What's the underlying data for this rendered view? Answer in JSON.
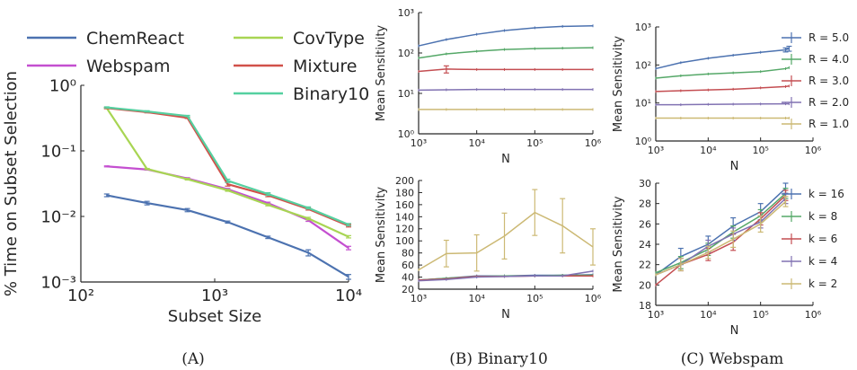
{
  "panel_titles": [
    "(A)",
    "(B) Binary10",
    "(C) Webspam"
  ],
  "chart_data": [
    {
      "id": "A",
      "type": "line",
      "title": "",
      "xlabel": "Subset Size",
      "ylabel": "% Time on Subset Selection",
      "xscale": "log",
      "yscale": "log",
      "xlim": [
        100,
        10000
      ],
      "ylim": [
        0.001,
        1
      ],
      "xticks": [
        100,
        1000,
        10000
      ],
      "xtick_labels": [
        "10²",
        "10³",
        "10⁴"
      ],
      "yticks": [
        0.001,
        0.01,
        0.1,
        1
      ],
      "ytick_labels": [
        "10⁻³",
        "10⁻²",
        "10⁻¹",
        "10⁰"
      ],
      "grid": false,
      "legend": "top, two columns",
      "x": [
        156,
        312,
        625,
        1250,
        2500,
        5000,
        10000
      ],
      "series": [
        {
          "name": "ChemReact",
          "color": "#4c72b0",
          "values": [
            0.021,
            0.016,
            0.0125,
            0.0082,
            0.0048,
            0.0028,
            0.0012
          ],
          "err": [
            0.001,
            0.001,
            0.0007,
            0.0003,
            0.0002,
            0.0003,
            0.0001
          ]
        },
        {
          "name": "Webspam",
          "color": "#c44fd0",
          "values": [
            0.058,
            0.052,
            0.038,
            0.026,
            0.016,
            0.0088,
            0.0033
          ],
          "err": [
            0.001,
            0.001,
            0.001,
            0.0008,
            0.0005,
            0.0004,
            0.0002
          ]
        },
        {
          "name": "CovType",
          "color": "#a8d553",
          "values": [
            0.45,
            0.053,
            0.037,
            0.025,
            0.015,
            0.0093,
            0.0049
          ],
          "err": [
            0.01,
            0.001,
            0.001,
            0.0008,
            0.0005,
            0.0004,
            0.0002
          ]
        },
        {
          "name": "Mixture",
          "color": "#d1514a",
          "values": [
            0.45,
            0.39,
            0.32,
            0.031,
            0.021,
            0.013,
            0.0072
          ],
          "err": [
            0.01,
            0.01,
            0.008,
            0.002,
            0.001,
            0.0005,
            0.0003
          ]
        },
        {
          "name": "Binary10",
          "color": "#55d0a0",
          "values": [
            0.46,
            0.4,
            0.34,
            0.035,
            0.022,
            0.0135,
            0.0075
          ],
          "err": [
            0.01,
            0.01,
            0.008,
            0.002,
            0.001,
            0.0005,
            0.0003
          ]
        }
      ]
    },
    {
      "id": "B-top",
      "type": "line",
      "xlabel": "N",
      "ylabel": "Mean Sensitivity",
      "xscale": "log",
      "yscale": "log",
      "xlim": [
        1000,
        1000000
      ],
      "ylim": [
        1,
        1000
      ],
      "xticks": [
        1000,
        10000,
        100000,
        1000000
      ],
      "xtick_labels": [
        "10³",
        "10⁴",
        "10⁵",
        "10⁶"
      ],
      "yticks": [
        1,
        10,
        100,
        1000
      ],
      "ytick_labels": [
        "10⁰",
        "10¹",
        "10²",
        "10³"
      ],
      "x": [
        1000,
        3000,
        10000,
        30000,
        100000,
        300000,
        1000000
      ],
      "series": [
        {
          "color": "#4c72b0",
          "values": [
            150,
            215,
            290,
            360,
            420,
            455,
            470
          ],
          "err": [
            0,
            0,
            0,
            0,
            0,
            0,
            0
          ]
        },
        {
          "color": "#55a868",
          "values": [
            75,
            95,
            110,
            122,
            128,
            132,
            135
          ],
          "err": [
            0,
            0,
            0,
            0,
            0,
            0,
            0
          ]
        },
        {
          "color": "#c44e52",
          "values": [
            35,
            40,
            39,
            39,
            39,
            39,
            39
          ],
          "err": [
            0,
            8,
            0,
            0,
            0,
            0,
            0
          ]
        },
        {
          "color": "#8172b2",
          "values": [
            12,
            12.3,
            12.5,
            12.5,
            12.5,
            12.5,
            12.5
          ],
          "err": [
            0,
            0,
            0,
            0,
            0,
            0,
            0
          ]
        },
        {
          "color": "#ccb974",
          "values": [
            4,
            4,
            4,
            4,
            4,
            4,
            4
          ],
          "err": [
            0,
            0,
            0,
            0,
            0,
            0,
            0
          ]
        }
      ]
    },
    {
      "id": "B-bottom",
      "type": "line",
      "xlabel": "N",
      "ylabel": "Mean Sensitivity",
      "xscale": "log",
      "yscale": "linear",
      "xlim": [
        1000,
        1000000
      ],
      "ylim": [
        20,
        200
      ],
      "xticks": [
        1000,
        10000,
        100000,
        1000000
      ],
      "xtick_labels": [
        "10³",
        "10⁴",
        "10⁵",
        "10⁶"
      ],
      "yticks": [
        20,
        40,
        60,
        80,
        100,
        120,
        140,
        160,
        180,
        200
      ],
      "x": [
        1000,
        3000,
        10000,
        30000,
        100000,
        300000,
        1000000
      ],
      "series": [
        {
          "color": "#ccb974",
          "values": [
            52,
            79,
            80,
            108,
            147,
            125,
            90
          ],
          "err": [
            0,
            22,
            30,
            38,
            38,
            45,
            30
          ]
        },
        {
          "color": "#4c72b0",
          "values": [
            35,
            38,
            42,
            42,
            43,
            43,
            44
          ],
          "err": [
            0,
            0,
            0,
            0,
            0,
            0,
            0
          ]
        },
        {
          "color": "#55a868",
          "values": [
            35,
            38,
            41,
            42,
            42,
            43,
            43
          ],
          "err": [
            0,
            0,
            0,
            0,
            0,
            0,
            0
          ]
        },
        {
          "color": "#c44e52",
          "values": [
            35,
            37,
            41,
            41,
            42,
            42,
            42
          ],
          "err": [
            0,
            0,
            0,
            0,
            0,
            0,
            0
          ]
        },
        {
          "color": "#8172b2",
          "values": [
            34,
            36,
            40,
            41,
            42,
            42,
            50
          ],
          "err": [
            0,
            0,
            0,
            0,
            0,
            0,
            0
          ]
        }
      ]
    },
    {
      "id": "C-top",
      "type": "line",
      "xlabel": "N",
      "ylabel": "Mean Sensitivity",
      "xscale": "log",
      "yscale": "log",
      "xlim": [
        1000,
        1000000
      ],
      "ylim": [
        1,
        1000
      ],
      "xticks": [
        1000,
        10000,
        100000,
        1000000
      ],
      "xtick_labels": [
        "10³",
        "10⁴",
        "10⁵",
        "10⁶"
      ],
      "yticks": [
        1,
        10,
        100,
        1000
      ],
      "ytick_labels": [
        "10⁰",
        "10¹",
        "10²",
        "10³"
      ],
      "legend": "right",
      "x": [
        1000,
        3000,
        10000,
        30000,
        100000,
        300000,
        350000
      ],
      "series": [
        {
          "name": "R = 5.0",
          "color": "#4c72b0",
          "values": [
            80,
            115,
            150,
            180,
            215,
            250,
            270
          ],
          "err": [
            0,
            0,
            0,
            0,
            0,
            30,
            40
          ]
        },
        {
          "name": "R = 4.0",
          "color": "#55a868",
          "values": [
            45,
            52,
            58,
            62,
            67,
            80,
            85
          ],
          "err": [
            0,
            0,
            0,
            0,
            0,
            0,
            0
          ]
        },
        {
          "name": "R = 3.0",
          "color": "#c44e52",
          "values": [
            20,
            21,
            22,
            23,
            25,
            27,
            28
          ],
          "err": [
            0,
            0,
            0,
            0,
            0,
            0,
            0
          ]
        },
        {
          "name": "R = 2.0",
          "color": "#8172b2",
          "values": [
            9,
            9,
            9.2,
            9.3,
            9.4,
            9.5,
            9.5
          ],
          "err": [
            0,
            0,
            0,
            0,
            0,
            0,
            0
          ]
        },
        {
          "name": "R = 1.0",
          "color": "#ccb974",
          "values": [
            4,
            4,
            4,
            4,
            4,
            4,
            4
          ],
          "err": [
            0,
            0,
            0,
            0,
            0,
            0,
            0
          ]
        }
      ]
    },
    {
      "id": "C-bottom",
      "type": "line",
      "xlabel": "N",
      "ylabel": "Mean Sensitivity",
      "xscale": "log",
      "yscale": "linear",
      "xlim": [
        1000,
        1000000
      ],
      "ylim": [
        18,
        30
      ],
      "xticks": [
        1000,
        10000,
        100000,
        1000000
      ],
      "xtick_labels": [
        "10³",
        "10⁴",
        "10⁵",
        "10⁶"
      ],
      "yticks": [
        18,
        20,
        22,
        24,
        26,
        28,
        30
      ],
      "legend": "right",
      "x": [
        1000,
        3000,
        10000,
        30000,
        100000,
        300000
      ],
      "series": [
        {
          "name": "k = 16",
          "color": "#4c72b0",
          "values": [
            21,
            22.8,
            24,
            25.8,
            27.2,
            29.5
          ],
          "err": [
            0,
            0.8,
            0.8,
            0.8,
            0.8,
            0.5
          ]
        },
        {
          "name": "k = 8",
          "color": "#55a868",
          "values": [
            21.2,
            22.2,
            23.5,
            25.2,
            26.8,
            29
          ],
          "err": [
            0,
            0.6,
            0.6,
            0.6,
            0.6,
            0.5
          ]
        },
        {
          "name": "k = 6",
          "color": "#c44e52",
          "values": [
            20,
            22,
            23,
            24.2,
            26.5,
            28.8
          ],
          "err": [
            0,
            0.6,
            0.6,
            0.8,
            0.6,
            0.5
          ]
        },
        {
          "name": "k = 4",
          "color": "#8172b2",
          "values": [
            21,
            22,
            23.8,
            25,
            26.2,
            28.5
          ],
          "err": [
            0,
            0.6,
            0.6,
            0.6,
            0.6,
            0.5
          ]
        },
        {
          "name": "k = 2",
          "color": "#ccb974",
          "values": [
            21,
            22,
            23.2,
            24.5,
            26,
            28.2
          ],
          "err": [
            0,
            0.6,
            0.6,
            0.8,
            0.8,
            0.5
          ]
        }
      ]
    }
  ]
}
